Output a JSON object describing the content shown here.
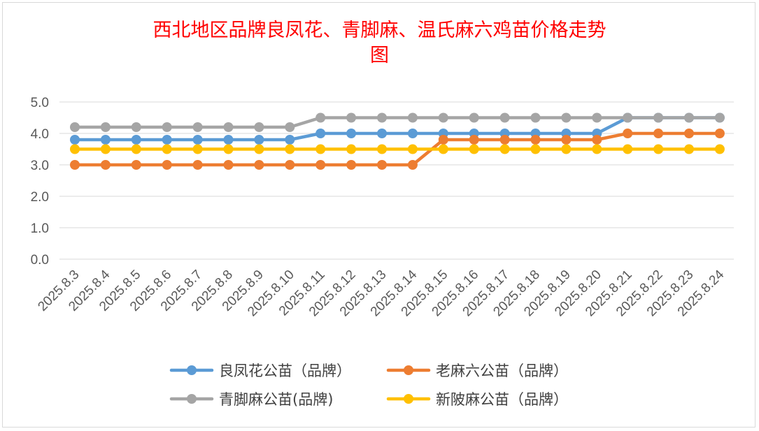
{
  "chart_data": {
    "type": "line",
    "title_line1": "西北地区品牌良凤花、青脚麻、温氏麻六鸡苗价格走势",
    "title_line2": "图",
    "categories": [
      "2025.8.3",
      "2025.8.4",
      "2025.8.5",
      "2025.8.6",
      "2025.8.7",
      "2025.8.8",
      "2025.8.9",
      "2025.8.10",
      "2025.8.11",
      "2025.8.12",
      "2025.8.13",
      "2025.8.14",
      "2025.8.15",
      "2025.8.16",
      "2025.8.17",
      "2025.8.18",
      "2025.8.19",
      "2025.8.20",
      "2025.8.21",
      "2025.8.22",
      "2025.8.23",
      "2025.8.24"
    ],
    "ylim": [
      0,
      5
    ],
    "yticks": [
      "0.0",
      "1.0",
      "2.0",
      "3.0",
      "4.0",
      "5.0"
    ],
    "grid": true,
    "legend_position": "bottom",
    "series": [
      {
        "name": "良凤花公苗（品牌）",
        "color": "#5b9bd5",
        "values": [
          3.8,
          3.8,
          3.8,
          3.8,
          3.8,
          3.8,
          3.8,
          3.8,
          4.0,
          4.0,
          4.0,
          4.0,
          4.0,
          4.0,
          4.0,
          4.0,
          4.0,
          4.0,
          4.5,
          4.5,
          4.5,
          4.5
        ]
      },
      {
        "name": "老麻六公苗（品牌）",
        "color": "#ed7d31",
        "values": [
          3.0,
          3.0,
          3.0,
          3.0,
          3.0,
          3.0,
          3.0,
          3.0,
          3.0,
          3.0,
          3.0,
          3.0,
          3.8,
          3.8,
          3.8,
          3.8,
          3.8,
          3.8,
          4.0,
          4.0,
          4.0,
          4.0
        ]
      },
      {
        "name": "青脚麻公苗(品牌)",
        "color": "#a5a5a5",
        "values": [
          4.2,
          4.2,
          4.2,
          4.2,
          4.2,
          4.2,
          4.2,
          4.2,
          4.5,
          4.5,
          4.5,
          4.5,
          4.5,
          4.5,
          4.5,
          4.5,
          4.5,
          4.5,
          4.5,
          4.5,
          4.5,
          4.5
        ]
      },
      {
        "name": "新陂麻公苗（品牌）",
        "color": "#ffc000",
        "values": [
          3.5,
          3.5,
          3.5,
          3.5,
          3.5,
          3.5,
          3.5,
          3.5,
          3.5,
          3.5,
          3.5,
          3.5,
          3.5,
          3.5,
          3.5,
          3.5,
          3.5,
          3.5,
          3.5,
          3.5,
          3.5,
          3.5
        ]
      }
    ]
  }
}
